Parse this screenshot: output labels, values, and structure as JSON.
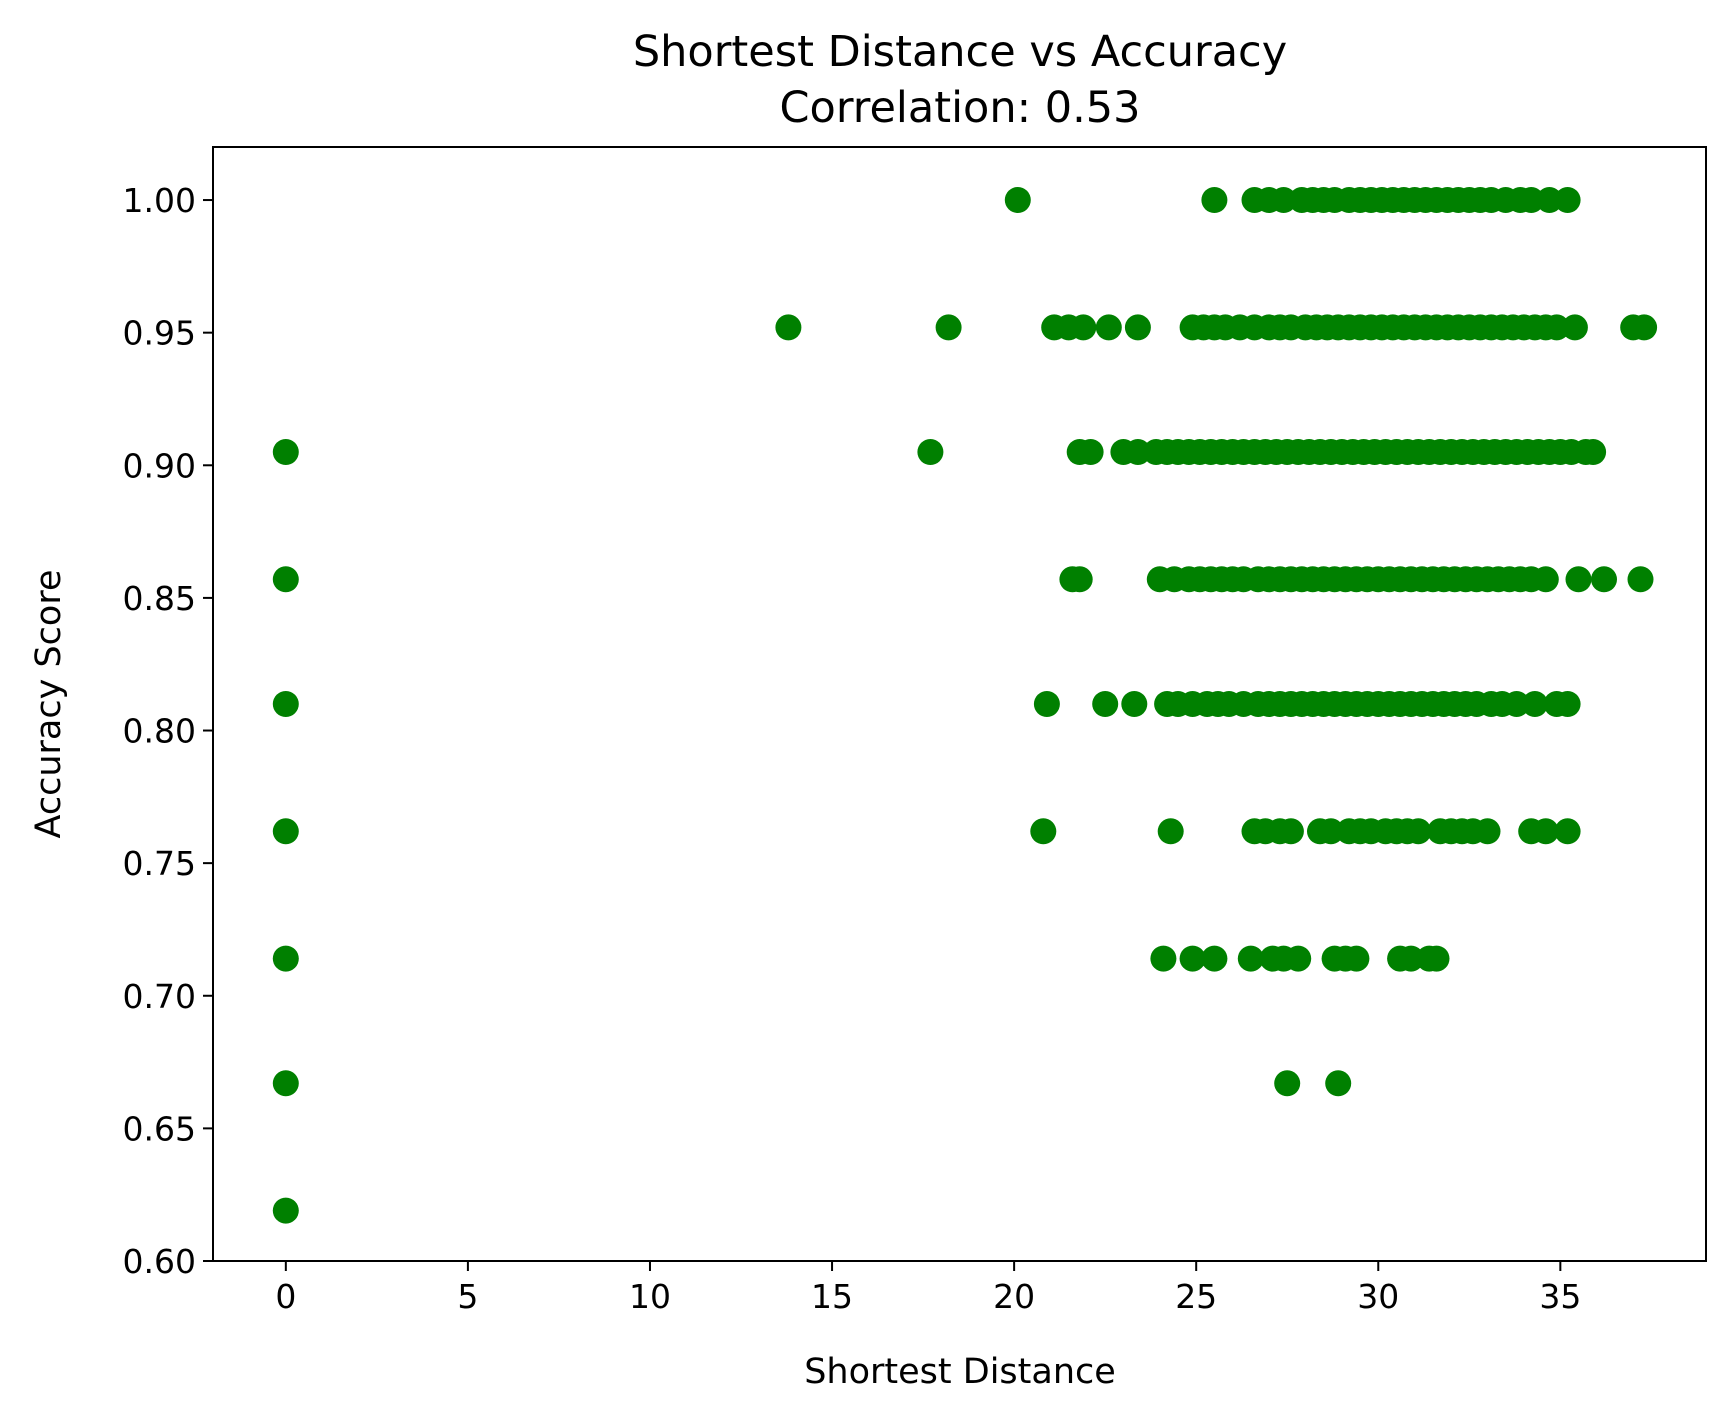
{
  "chart_data": {
    "type": "scatter",
    "title": "Shortest Distance vs Accuracy",
    "subtitle": "Correlation: 0.53",
    "xlabel": "Shortest Distance",
    "ylabel": "Accuracy Score",
    "xlim": [
      -2,
      39
    ],
    "ylim": [
      0.6,
      1.02
    ],
    "xticks": [
      0,
      5,
      10,
      15,
      20,
      25,
      30,
      35
    ],
    "xtick_labels": [
      "0",
      "5",
      "10",
      "15",
      "20",
      "25",
      "30",
      "35"
    ],
    "yticks": [
      0.6,
      0.65,
      0.7,
      0.75,
      0.8,
      0.85,
      0.9,
      0.95,
      1.0
    ],
    "ytick_labels": [
      "0.60",
      "0.65",
      "0.70",
      "0.75",
      "0.80",
      "0.85",
      "0.90",
      "0.95",
      "1.00"
    ],
    "grid": false,
    "marker_color": "#008000",
    "series": [
      {
        "points": [
          [
            0,
            0.905
          ],
          [
            0,
            0.857
          ],
          [
            0,
            0.81
          ],
          [
            0,
            0.762
          ],
          [
            0,
            0.714
          ],
          [
            0,
            0.667
          ],
          [
            0,
            0.619
          ],
          [
            20.1,
            1.0
          ],
          [
            25.5,
            1.0
          ],
          [
            26.6,
            1.0
          ],
          [
            27.0,
            1.0
          ],
          [
            27.4,
            1.0
          ],
          [
            27.9,
            1.0
          ],
          [
            28.2,
            1.0
          ],
          [
            28.5,
            1.0
          ],
          [
            28.8,
            1.0
          ],
          [
            29.2,
            1.0
          ],
          [
            29.5,
            1.0
          ],
          [
            29.8,
            1.0
          ],
          [
            30.1,
            1.0
          ],
          [
            30.4,
            1.0
          ],
          [
            30.7,
            1.0
          ],
          [
            31.0,
            1.0
          ],
          [
            31.3,
            1.0
          ],
          [
            31.6,
            1.0
          ],
          [
            31.9,
            1.0
          ],
          [
            32.2,
            1.0
          ],
          [
            32.5,
            1.0
          ],
          [
            32.8,
            1.0
          ],
          [
            33.1,
            1.0
          ],
          [
            33.5,
            1.0
          ],
          [
            33.9,
            1.0
          ],
          [
            34.2,
            1.0
          ],
          [
            34.7,
            1.0
          ],
          [
            35.2,
            1.0
          ],
          [
            13.8,
            0.952
          ],
          [
            18.2,
            0.952
          ],
          [
            21.1,
            0.952
          ],
          [
            21.5,
            0.952
          ],
          [
            21.9,
            0.952
          ],
          [
            22.6,
            0.952
          ],
          [
            23.4,
            0.952
          ],
          [
            24.9,
            0.952
          ],
          [
            25.2,
            0.952
          ],
          [
            25.5,
            0.952
          ],
          [
            25.8,
            0.952
          ],
          [
            26.2,
            0.952
          ],
          [
            26.6,
            0.952
          ],
          [
            27.0,
            0.952
          ],
          [
            27.3,
            0.952
          ],
          [
            27.6,
            0.952
          ],
          [
            28.0,
            0.952
          ],
          [
            28.3,
            0.952
          ],
          [
            28.6,
            0.952
          ],
          [
            28.9,
            0.952
          ],
          [
            29.2,
            0.952
          ],
          [
            29.5,
            0.952
          ],
          [
            29.8,
            0.952
          ],
          [
            30.1,
            0.952
          ],
          [
            30.4,
            0.952
          ],
          [
            30.7,
            0.952
          ],
          [
            31.0,
            0.952
          ],
          [
            31.3,
            0.952
          ],
          [
            31.6,
            0.952
          ],
          [
            31.9,
            0.952
          ],
          [
            32.2,
            0.952
          ],
          [
            32.5,
            0.952
          ],
          [
            32.8,
            0.952
          ],
          [
            33.1,
            0.952
          ],
          [
            33.4,
            0.952
          ],
          [
            33.7,
            0.952
          ],
          [
            34.0,
            0.952
          ],
          [
            34.3,
            0.952
          ],
          [
            34.6,
            0.952
          ],
          [
            34.9,
            0.952
          ],
          [
            35.4,
            0.952
          ],
          [
            37.0,
            0.952
          ],
          [
            37.3,
            0.952
          ],
          [
            17.7,
            0.905
          ],
          [
            21.8,
            0.905
          ],
          [
            22.1,
            0.905
          ],
          [
            23.0,
            0.905
          ],
          [
            23.4,
            0.905
          ],
          [
            23.9,
            0.905
          ],
          [
            24.2,
            0.905
          ],
          [
            24.5,
            0.905
          ],
          [
            24.8,
            0.905
          ],
          [
            25.1,
            0.905
          ],
          [
            25.4,
            0.905
          ],
          [
            25.7,
            0.905
          ],
          [
            26.0,
            0.905
          ],
          [
            26.3,
            0.905
          ],
          [
            26.6,
            0.905
          ],
          [
            26.9,
            0.905
          ],
          [
            27.2,
            0.905
          ],
          [
            27.5,
            0.905
          ],
          [
            27.8,
            0.905
          ],
          [
            28.1,
            0.905
          ],
          [
            28.4,
            0.905
          ],
          [
            28.7,
            0.905
          ],
          [
            29.0,
            0.905
          ],
          [
            29.3,
            0.905
          ],
          [
            29.6,
            0.905
          ],
          [
            29.9,
            0.905
          ],
          [
            30.2,
            0.905
          ],
          [
            30.5,
            0.905
          ],
          [
            30.8,
            0.905
          ],
          [
            31.1,
            0.905
          ],
          [
            31.4,
            0.905
          ],
          [
            31.7,
            0.905
          ],
          [
            32.0,
            0.905
          ],
          [
            32.3,
            0.905
          ],
          [
            32.6,
            0.905
          ],
          [
            32.9,
            0.905
          ],
          [
            33.2,
            0.905
          ],
          [
            33.5,
            0.905
          ],
          [
            33.8,
            0.905
          ],
          [
            34.1,
            0.905
          ],
          [
            34.4,
            0.905
          ],
          [
            34.7,
            0.905
          ],
          [
            35.0,
            0.905
          ],
          [
            35.3,
            0.905
          ],
          [
            35.7,
            0.905
          ],
          [
            35.9,
            0.905
          ],
          [
            21.6,
            0.857
          ],
          [
            21.8,
            0.857
          ],
          [
            24.0,
            0.857
          ],
          [
            24.4,
            0.857
          ],
          [
            24.8,
            0.857
          ],
          [
            25.1,
            0.857
          ],
          [
            25.4,
            0.857
          ],
          [
            25.7,
            0.857
          ],
          [
            26.0,
            0.857
          ],
          [
            26.3,
            0.857
          ],
          [
            26.7,
            0.857
          ],
          [
            27.0,
            0.857
          ],
          [
            27.3,
            0.857
          ],
          [
            27.6,
            0.857
          ],
          [
            27.9,
            0.857
          ],
          [
            28.2,
            0.857
          ],
          [
            28.5,
            0.857
          ],
          [
            28.8,
            0.857
          ],
          [
            29.1,
            0.857
          ],
          [
            29.4,
            0.857
          ],
          [
            29.7,
            0.857
          ],
          [
            30.0,
            0.857
          ],
          [
            30.3,
            0.857
          ],
          [
            30.6,
            0.857
          ],
          [
            30.9,
            0.857
          ],
          [
            31.2,
            0.857
          ],
          [
            31.5,
            0.857
          ],
          [
            31.8,
            0.857
          ],
          [
            32.1,
            0.857
          ],
          [
            32.4,
            0.857
          ],
          [
            32.7,
            0.857
          ],
          [
            33.0,
            0.857
          ],
          [
            33.3,
            0.857
          ],
          [
            33.6,
            0.857
          ],
          [
            33.9,
            0.857
          ],
          [
            34.2,
            0.857
          ],
          [
            34.6,
            0.857
          ],
          [
            35.5,
            0.857
          ],
          [
            36.2,
            0.857
          ],
          [
            37.2,
            0.857
          ],
          [
            20.9,
            0.81
          ],
          [
            22.5,
            0.81
          ],
          [
            23.3,
            0.81
          ],
          [
            24.2,
            0.81
          ],
          [
            24.5,
            0.81
          ],
          [
            24.9,
            0.81
          ],
          [
            25.3,
            0.81
          ],
          [
            25.6,
            0.81
          ],
          [
            25.9,
            0.81
          ],
          [
            26.3,
            0.81
          ],
          [
            26.7,
            0.81
          ],
          [
            27.0,
            0.81
          ],
          [
            27.3,
            0.81
          ],
          [
            27.6,
            0.81
          ],
          [
            27.9,
            0.81
          ],
          [
            28.2,
            0.81
          ],
          [
            28.5,
            0.81
          ],
          [
            28.8,
            0.81
          ],
          [
            29.1,
            0.81
          ],
          [
            29.4,
            0.81
          ],
          [
            29.7,
            0.81
          ],
          [
            30.0,
            0.81
          ],
          [
            30.3,
            0.81
          ],
          [
            30.6,
            0.81
          ],
          [
            30.9,
            0.81
          ],
          [
            31.2,
            0.81
          ],
          [
            31.5,
            0.81
          ],
          [
            31.8,
            0.81
          ],
          [
            32.1,
            0.81
          ],
          [
            32.4,
            0.81
          ],
          [
            32.7,
            0.81
          ],
          [
            33.1,
            0.81
          ],
          [
            33.4,
            0.81
          ],
          [
            33.8,
            0.81
          ],
          [
            34.3,
            0.81
          ],
          [
            34.9,
            0.81
          ],
          [
            35.2,
            0.81
          ],
          [
            20.8,
            0.762
          ],
          [
            24.3,
            0.762
          ],
          [
            26.6,
            0.762
          ],
          [
            26.9,
            0.762
          ],
          [
            27.3,
            0.762
          ],
          [
            27.6,
            0.762
          ],
          [
            28.4,
            0.762
          ],
          [
            28.7,
            0.762
          ],
          [
            29.2,
            0.762
          ],
          [
            29.5,
            0.762
          ],
          [
            29.8,
            0.762
          ],
          [
            30.2,
            0.762
          ],
          [
            30.5,
            0.762
          ],
          [
            30.8,
            0.762
          ],
          [
            31.1,
            0.762
          ],
          [
            31.7,
            0.762
          ],
          [
            32.0,
            0.762
          ],
          [
            32.3,
            0.762
          ],
          [
            32.6,
            0.762
          ],
          [
            33.0,
            0.762
          ],
          [
            34.2,
            0.762
          ],
          [
            34.6,
            0.762
          ],
          [
            35.2,
            0.762
          ],
          [
            24.1,
            0.714
          ],
          [
            24.9,
            0.714
          ],
          [
            25.5,
            0.714
          ],
          [
            26.5,
            0.714
          ],
          [
            27.1,
            0.714
          ],
          [
            27.4,
            0.714
          ],
          [
            27.8,
            0.714
          ],
          [
            28.8,
            0.714
          ],
          [
            29.1,
            0.714
          ],
          [
            29.4,
            0.714
          ],
          [
            30.6,
            0.714
          ],
          [
            30.9,
            0.714
          ],
          [
            31.4,
            0.714
          ],
          [
            31.6,
            0.714
          ],
          [
            27.5,
            0.667
          ],
          [
            28.9,
            0.667
          ]
        ]
      }
    ]
  }
}
